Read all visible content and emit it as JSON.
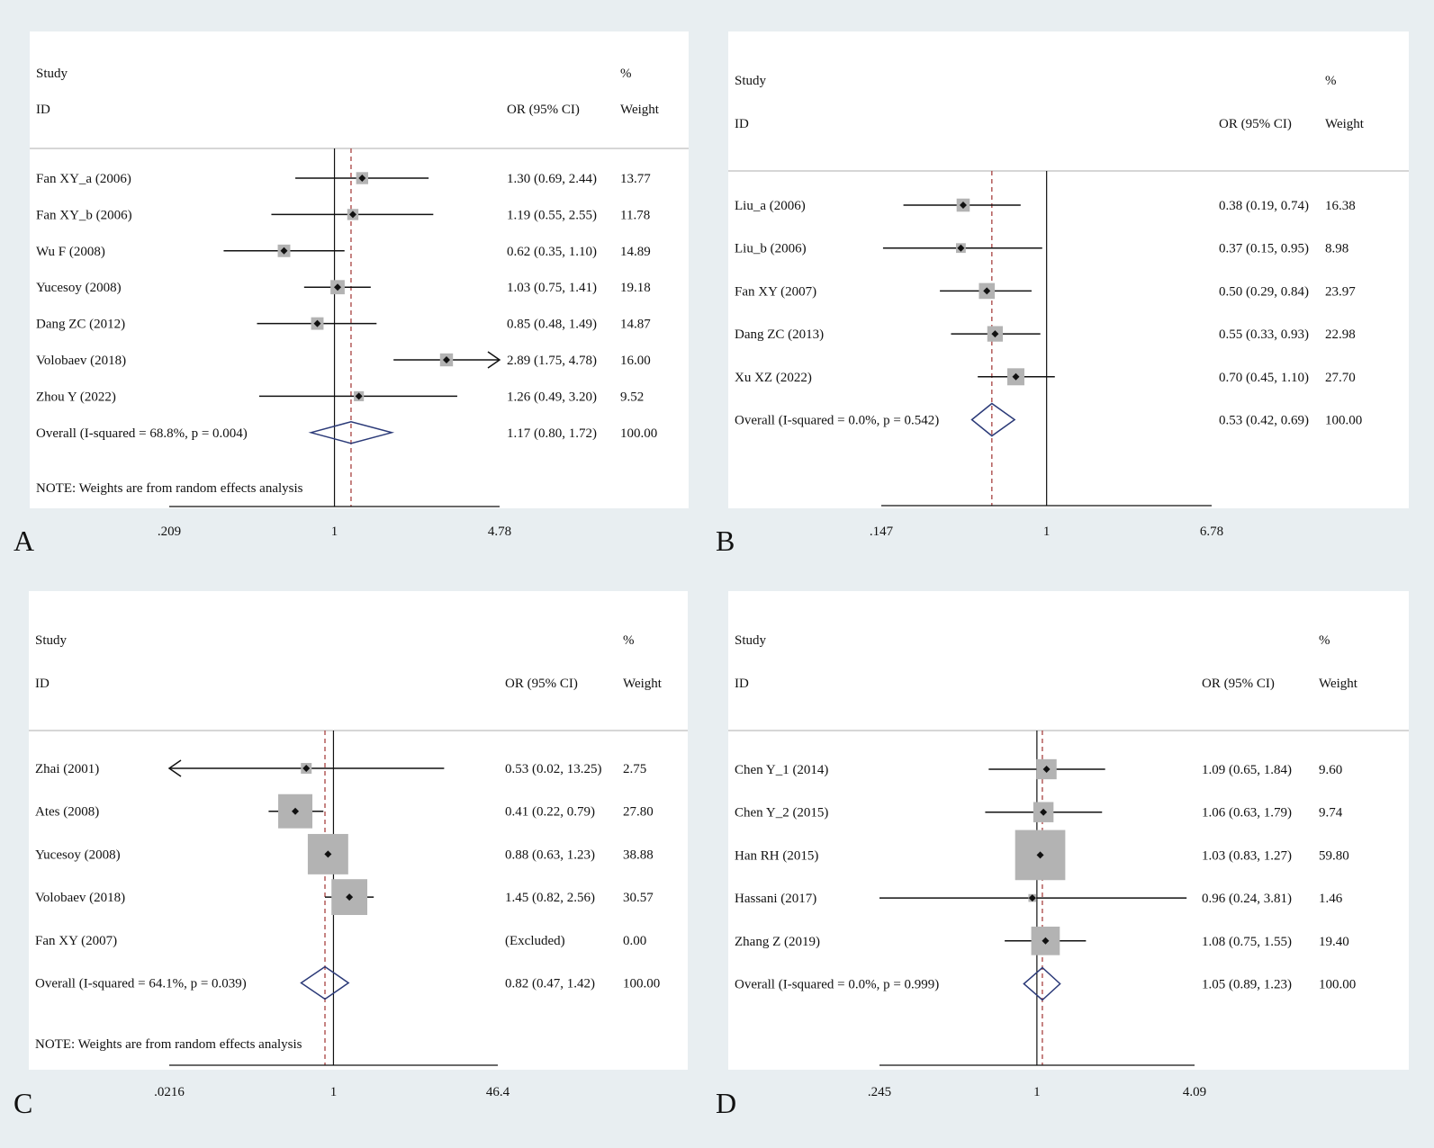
{
  "chart_data": [
    {
      "panel": "A",
      "type": "forest",
      "scale": "log",
      "ticks": [
        0.209,
        1,
        4.78
      ],
      "tick_labels": [
        ".209",
        "1",
        "4.78"
      ],
      "header": {
        "study": "Study",
        "id": "ID",
        "or": "OR (95% CI)",
        "pct": "%",
        "weight": "Weight"
      },
      "studies": [
        {
          "label": "Fan XY_a (2006)",
          "or": 1.3,
          "lo": 0.69,
          "hi": 2.44,
          "text": "1.30 (0.69, 2.44)",
          "weight": 13.77,
          "weight_text": "13.77"
        },
        {
          "label": "Fan XY_b (2006)",
          "or": 1.19,
          "lo": 0.55,
          "hi": 2.55,
          "text": "1.19 (0.55, 2.55)",
          "weight": 11.78,
          "weight_text": "11.78"
        },
        {
          "label": "Wu F (2008)",
          "or": 0.62,
          "lo": 0.35,
          "hi": 1.1,
          "text": "0.62 (0.35, 1.10)",
          "weight": 14.89,
          "weight_text": "14.89"
        },
        {
          "label": "Yucesoy (2008)",
          "or": 1.03,
          "lo": 0.75,
          "hi": 1.41,
          "text": "1.03 (0.75, 1.41)",
          "weight": 19.18,
          "weight_text": "19.18"
        },
        {
          "label": "Dang ZC (2012)",
          "or": 0.85,
          "lo": 0.48,
          "hi": 1.49,
          "text": "0.85 (0.48, 1.49)",
          "weight": 14.87,
          "weight_text": "14.87"
        },
        {
          "label": "Volobaev (2018)",
          "or": 2.89,
          "lo": 1.75,
          "hi": 4.78,
          "text": "2.89 (1.75, 4.78)",
          "weight": 16.0,
          "weight_text": "16.00",
          "arrow_right": true
        },
        {
          "label": "Zhou Y (2022)",
          "or": 1.26,
          "lo": 0.49,
          "hi": 3.2,
          "text": "1.26 (0.49, 3.20)",
          "weight": 9.52,
          "weight_text": "9.52"
        }
      ],
      "overall": {
        "label": "Overall  (I-squared = 68.8%, p = 0.004)",
        "or": 1.17,
        "lo": 0.8,
        "hi": 1.72,
        "text": "1.17 (0.80, 1.72)",
        "weight_text": "100.00"
      },
      "note": "NOTE: Weights are from random effects analysis"
    },
    {
      "panel": "B",
      "type": "forest",
      "scale": "log",
      "ticks": [
        0.147,
        1,
        6.78
      ],
      "tick_labels": [
        ".147",
        "1",
        "6.78"
      ],
      "header": {
        "study": "Study",
        "id": "ID",
        "or": "OR (95% CI)",
        "pct": "%",
        "weight": "Weight"
      },
      "studies": [
        {
          "label": "Liu_a (2006)",
          "or": 0.38,
          "lo": 0.19,
          "hi": 0.74,
          "text": "0.38 (0.19, 0.74)",
          "weight": 16.38,
          "weight_text": "16.38"
        },
        {
          "label": "Liu_b (2006)",
          "or": 0.37,
          "lo": 0.15,
          "hi": 0.95,
          "text": "0.37 (0.15, 0.95)",
          "weight": 8.98,
          "weight_text": "8.98"
        },
        {
          "label": "Fan XY (2007)",
          "or": 0.5,
          "lo": 0.29,
          "hi": 0.84,
          "text": "0.50 (0.29, 0.84)",
          "weight": 23.97,
          "weight_text": "23.97"
        },
        {
          "label": "Dang ZC (2013)",
          "or": 0.55,
          "lo": 0.33,
          "hi": 0.93,
          "text": "0.55 (0.33, 0.93)",
          "weight": 22.98,
          "weight_text": "22.98"
        },
        {
          "label": "Xu XZ (2022)",
          "or": 0.7,
          "lo": 0.45,
          "hi": 1.1,
          "text": "0.70 (0.45, 1.10)",
          "weight": 27.7,
          "weight_text": "27.70"
        }
      ],
      "overall": {
        "label": "Overall  (I-squared = 0.0%, p = 0.542)",
        "or": 0.53,
        "lo": 0.42,
        "hi": 0.69,
        "text": "0.53 (0.42, 0.69)",
        "weight_text": "100.00"
      },
      "note": ""
    },
    {
      "panel": "C",
      "type": "forest",
      "scale": "log",
      "ticks": [
        0.0216,
        1,
        46.4
      ],
      "tick_labels": [
        ".0216",
        "1",
        "46.4"
      ],
      "header": {
        "study": "Study",
        "id": "ID",
        "or": "OR (95% CI)",
        "pct": "%",
        "weight": "Weight"
      },
      "studies": [
        {
          "label": "Zhai (2001)",
          "or": 0.53,
          "lo": 0.02,
          "hi": 13.25,
          "text": "0.53 (0.02, 13.25)",
          "weight": 2.75,
          "weight_text": "2.75",
          "arrow_left": true
        },
        {
          "label": "Ates (2008)",
          "or": 0.41,
          "lo": 0.22,
          "hi": 0.79,
          "text": "0.41 (0.22, 0.79)",
          "weight": 27.8,
          "weight_text": "27.80"
        },
        {
          "label": "Yucesoy (2008)",
          "or": 0.88,
          "lo": 0.63,
          "hi": 1.23,
          "text": "0.88 (0.63, 1.23)",
          "weight": 38.88,
          "weight_text": "38.88"
        },
        {
          "label": "Volobaev (2018)",
          "or": 1.45,
          "lo": 0.82,
          "hi": 2.56,
          "text": "1.45 (0.82, 2.56)",
          "weight": 30.57,
          "weight_text": "30.57"
        },
        {
          "label": "Fan XY (2007)",
          "or": null,
          "lo": null,
          "hi": null,
          "text": "(Excluded)",
          "weight": 0,
          "weight_text": "0.00"
        }
      ],
      "overall": {
        "label": "Overall  (I-squared = 64.1%, p = 0.039)",
        "or": 0.82,
        "lo": 0.47,
        "hi": 1.42,
        "text": "0.82 (0.47, 1.42)",
        "weight_text": "100.00"
      },
      "note": "NOTE: Weights are from random effects analysis"
    },
    {
      "panel": "D",
      "type": "forest",
      "scale": "log",
      "ticks": [
        0.245,
        1,
        4.09
      ],
      "tick_labels": [
        ".245",
        "1",
        "4.09"
      ],
      "header": {
        "study": "Study",
        "id": "ID",
        "or": "OR (95% CI)",
        "pct": "%",
        "weight": "Weight"
      },
      "studies": [
        {
          "label": "Chen Y_1 (2014)",
          "or": 1.09,
          "lo": 0.65,
          "hi": 1.84,
          "text": "1.09 (0.65, 1.84)",
          "weight": 9.6,
          "weight_text": "9.60"
        },
        {
          "label": "Chen Y_2 (2015)",
          "or": 1.06,
          "lo": 0.63,
          "hi": 1.79,
          "text": "1.06 (0.63, 1.79)",
          "weight": 9.74,
          "weight_text": "9.74"
        },
        {
          "label": "Han RH (2015)",
          "or": 1.03,
          "lo": 0.83,
          "hi": 1.27,
          "text": "1.03 (0.83, 1.27)",
          "weight": 59.8,
          "weight_text": "59.80"
        },
        {
          "label": "Hassani (2017)",
          "or": 0.96,
          "lo": 0.24,
          "hi": 3.81,
          "text": "0.96 (0.24, 3.81)",
          "weight": 1.46,
          "weight_text": "1.46"
        },
        {
          "label": "Zhang Z (2019)",
          "or": 1.08,
          "lo": 0.75,
          "hi": 1.55,
          "text": "1.08 (0.75, 1.55)",
          "weight": 19.4,
          "weight_text": "19.40"
        }
      ],
      "overall": {
        "label": "Overall  (I-squared = 0.0%, p = 0.999)",
        "or": 1.05,
        "lo": 0.89,
        "hi": 1.23,
        "text": "1.05 (0.89, 1.23)",
        "weight_text": "100.00"
      },
      "note": ""
    }
  ]
}
